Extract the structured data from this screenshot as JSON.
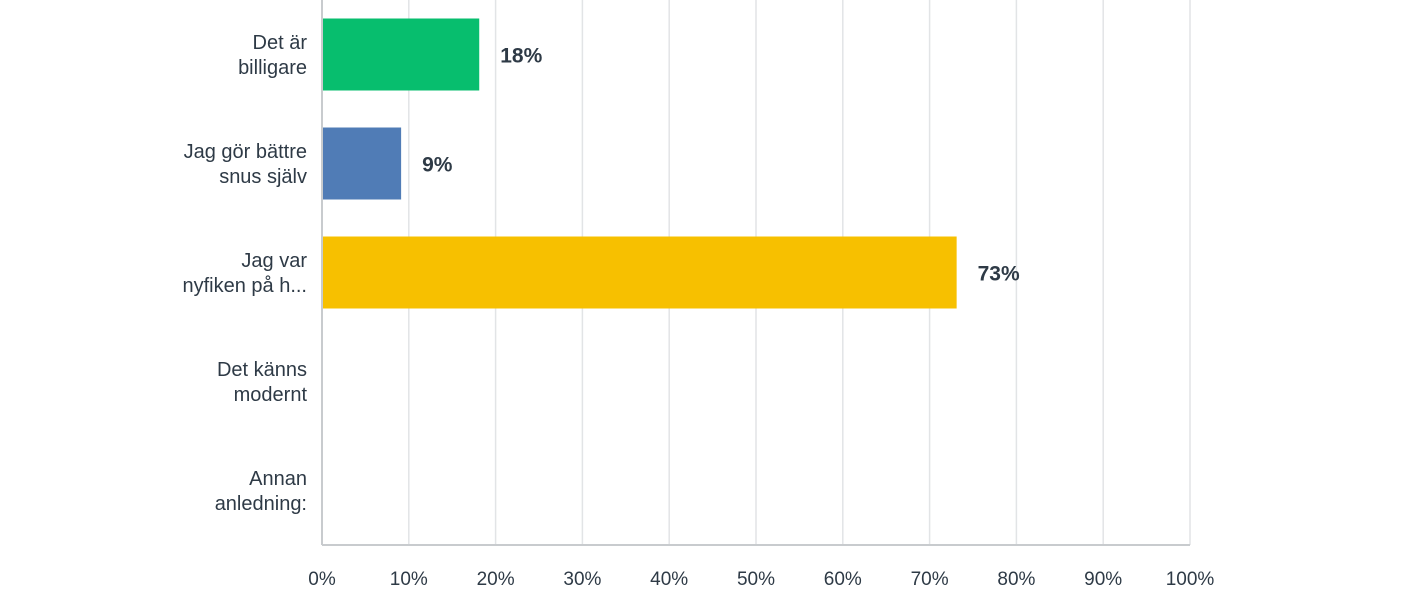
{
  "chart_data": {
    "type": "bar",
    "orientation": "horizontal",
    "categories": [
      [
        "Det är",
        "billigare"
      ],
      [
        "Jag gör bättre",
        "snus själv"
      ],
      [
        "Jag var",
        "nyfiken på h..."
      ],
      [
        "Det känns",
        "modernt"
      ],
      [
        "Annan",
        "anledning:"
      ]
    ],
    "values": [
      18,
      9,
      73,
      0,
      0
    ],
    "value_labels": [
      "18%",
      "9%",
      "73%",
      "",
      ""
    ],
    "colors": [
      "#07be6e",
      "#507cb6",
      "#f7c000",
      "#6fb7c9",
      "#f05b4f"
    ],
    "xlim": [
      0,
      100
    ],
    "xticks": [
      "0%",
      "10%",
      "20%",
      "30%",
      "40%",
      "50%",
      "60%",
      "70%",
      "80%",
      "90%",
      "100%"
    ],
    "grid": true,
    "title": "",
    "xlabel": "",
    "ylabel": ""
  }
}
